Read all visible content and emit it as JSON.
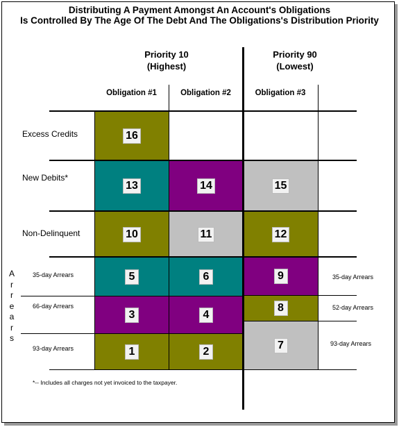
{
  "title_line1": "Distributing A Payment Amongst An Account's Obligations",
  "title_line2": "Is Controlled By The Age Of The Debt And The Obligations's Distribution Priority",
  "priority_left": {
    "line1": "Priority 10",
    "line2": "(Highest)"
  },
  "priority_right": {
    "line1": "Priority 90",
    "line2": "(Lowest)"
  },
  "columns": [
    "Obligation #1",
    "Obligation #2",
    "Obligation #3"
  ],
  "rows": {
    "excess_credits": "Excess Credits",
    "new_debits": "New Debits*",
    "non_delinquent": "Non-Delinquent",
    "arrears_left": [
      "35-day Arrears",
      "66-day Arrears",
      "93-day Arrears"
    ],
    "arrears_right": [
      "35-day Arrears",
      "52-day Arrears",
      "93-day Arrears"
    ]
  },
  "arrears_vertical": [
    "A",
    "r",
    "r",
    "e",
    "a",
    "r",
    "s"
  ],
  "cells": {
    "c16": "16",
    "c13": "13",
    "c14": "14",
    "c15": "15",
    "c10": "10",
    "c11": "11",
    "c12": "12",
    "c5": "5",
    "c6": "6",
    "c9": "9",
    "c3": "3",
    "c4": "4",
    "c8": "8",
    "c1": "1",
    "c2": "2",
    "c7": "7"
  },
  "colors": {
    "olive": "#808000",
    "teal": "#008080",
    "purple": "#800080",
    "gray": "#c0c0c0"
  },
  "footnote": "*-- Includes all charges not yet invoiced to the taxpayer."
}
